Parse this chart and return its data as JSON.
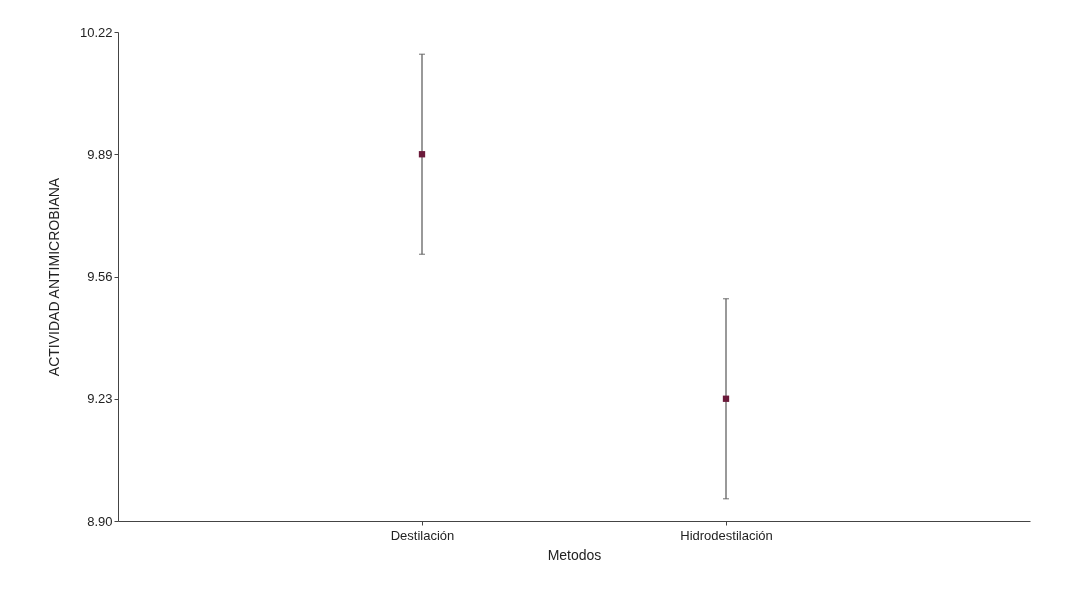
{
  "chart_data": {
    "type": "scatter",
    "xlabel": "Metodos",
    "ylabel": "ACTIVIDAD ANTIMICROBIANA",
    "categories": [
      "Destilación",
      "Hidrodestilación"
    ],
    "values": [
      9.89,
      9.23
    ],
    "errors": [
      [
        9.62,
        10.16
      ],
      [
        8.96,
        9.5
      ]
    ],
    "color": "#6b1a3a",
    "marker": "square",
    "ylim": [
      8.9,
      10.22
    ],
    "yticks": [
      {
        "value": 8.9,
        "label": "8.90"
      },
      {
        "value": 9.23,
        "label": "9.23"
      },
      {
        "value": 9.56,
        "label": "9.56"
      },
      {
        "value": 9.89,
        "label": "9.89"
      },
      {
        "value": 10.22,
        "label": "10.22"
      }
    ],
    "grid": false
  }
}
